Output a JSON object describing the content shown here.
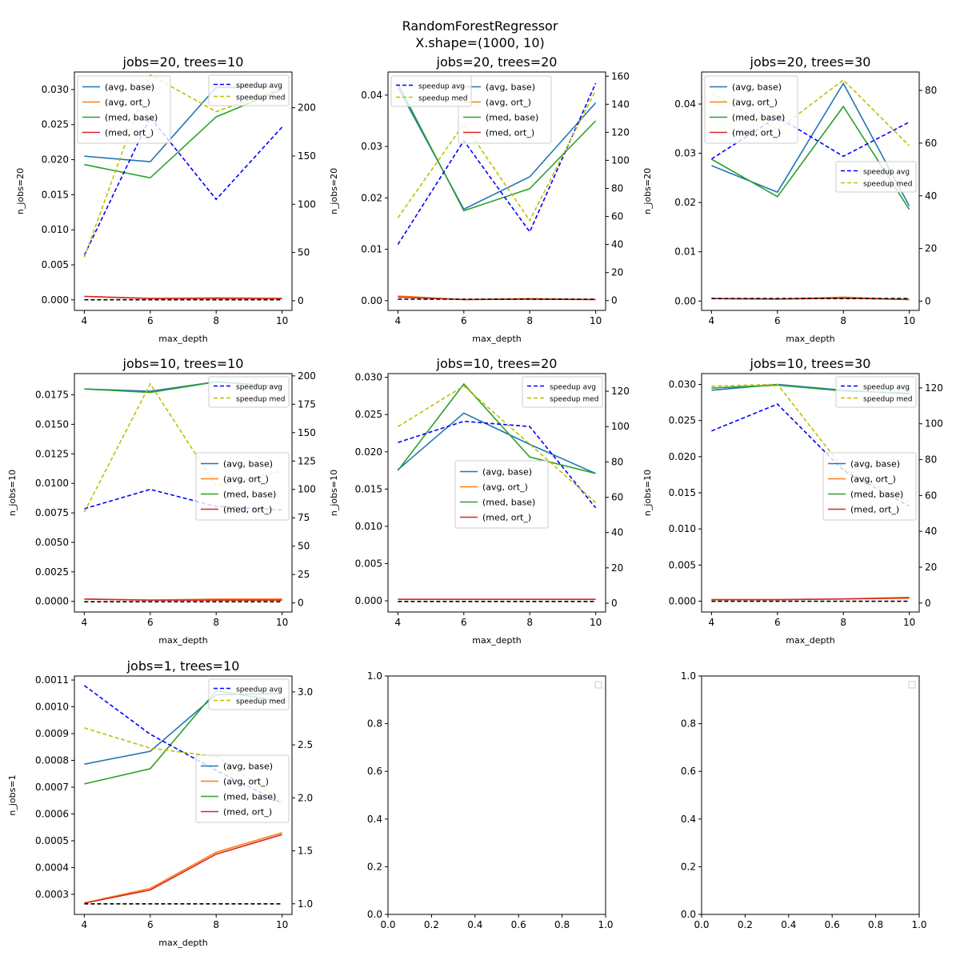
{
  "figure": {
    "title_line1": "RandomForestRegressor",
    "title_line2": "X.shape=(1000, 10)"
  },
  "colors": {
    "avg_base": "#1f77b4",
    "avg_ort": "#ff7f0e",
    "med_base": "#2ca02c",
    "med_ort": "#d62728",
    "speedup_avg": "#0000ff",
    "speedup_med": "#bfbf00",
    "baseline": "#000000"
  },
  "legend_labels": {
    "avg_base": "(avg, base)",
    "avg_ort": "(avg, ort_)",
    "med_base": "(med, base)",
    "med_ort": "(med, ort_)",
    "speedup_avg": "speedup avg",
    "speedup_med": "speedup med"
  },
  "chart_data": [
    {
      "type": "line",
      "title": "jobs=20, trees=10",
      "xlabel": "max_depth",
      "ylabel": "n_jobs=20",
      "x": [
        4,
        6,
        8,
        10
      ],
      "xticks": [
        "4",
        "6",
        "8",
        "10"
      ],
      "ylim": [
        -0.0015,
        0.0325
      ],
      "yticks": [
        "0.000",
        "0.005",
        "0.010",
        "0.015",
        "0.020",
        "0.025",
        "0.030"
      ],
      "ytick_values": [
        0,
        0.005,
        0.01,
        0.015,
        0.02,
        0.025,
        0.03
      ],
      "y2lim": [
        -10,
        237
      ],
      "y2ticks": [
        "0",
        "50",
        "100",
        "150",
        "200"
      ],
      "y2tick_values": [
        0,
        50,
        100,
        150,
        200
      ],
      "series": [
        {
          "name": "(avg, base)",
          "key": "avg_base",
          "values": [
            0.0205,
            0.0197,
            0.0303,
            0.0303
          ]
        },
        {
          "name": "(avg, ort_)",
          "key": "avg_ort",
          "values": [
            0.0005,
            0.0002,
            0.0003,
            0.0002
          ]
        },
        {
          "name": "(med, base)",
          "key": "med_base",
          "values": [
            0.0193,
            0.0174,
            0.0261,
            0.03
          ]
        },
        {
          "name": "(med, ort_)",
          "key": "med_ort",
          "values": [
            0.0005,
            0.0002,
            0.0002,
            0.0002
          ]
        }
      ],
      "series2": [
        {
          "name": "speedup avg",
          "key": "speedup_avg",
          "values": [
            47,
            190,
            105,
            180
          ]
        },
        {
          "name": "speedup med",
          "key": "speedup_med",
          "values": [
            45,
            234,
            196,
            220
          ]
        },
        {
          "name": "baseline",
          "key": "baseline",
          "values": [
            1,
            1,
            1,
            1
          ]
        }
      ],
      "legend1": "upper-left",
      "legend2": "upper-right"
    },
    {
      "type": "line",
      "title": "jobs=20, trees=20",
      "xlabel": "max_depth",
      "ylabel": "n_jobs=20",
      "x": [
        4,
        6,
        8,
        10
      ],
      "xticks": [
        "4",
        "6",
        "8",
        "10"
      ],
      "ylim": [
        -0.0019,
        0.0445
      ],
      "yticks": [
        "0.00",
        "0.01",
        "0.02",
        "0.03",
        "0.04"
      ],
      "ytick_values": [
        0,
        0.01,
        0.02,
        0.03,
        0.04
      ],
      "y2lim": [
        -7,
        163
      ],
      "y2ticks": [
        "0",
        "20",
        "40",
        "60",
        "80",
        "100",
        "120",
        "140",
        "160"
      ],
      "y2tick_values": [
        0,
        20,
        40,
        60,
        80,
        100,
        120,
        140,
        160
      ],
      "series": [
        {
          "name": "(avg, base)",
          "key": "avg_base",
          "values": [
            0.0415,
            0.0178,
            0.0241,
            0.0385
          ]
        },
        {
          "name": "(avg, ort_)",
          "key": "avg_ort",
          "values": [
            0.0009,
            0.0002,
            0.0004,
            0.0002
          ]
        },
        {
          "name": "(med, base)",
          "key": "med_base",
          "values": [
            0.0422,
            0.0175,
            0.0218,
            0.035
          ]
        },
        {
          "name": "(med, ort_)",
          "key": "med_ort",
          "values": [
            0.0007,
            0.0002,
            0.0003,
            0.0002
          ]
        }
      ],
      "series2": [
        {
          "name": "speedup avg",
          "key": "speedup_avg",
          "values": [
            40,
            114,
            49,
            155
          ]
        },
        {
          "name": "speedup med",
          "key": "speedup_med",
          "values": [
            59,
            126,
            57,
            150
          ]
        },
        {
          "name": "baseline",
          "key": "baseline",
          "values": [
            1,
            1,
            1,
            1
          ]
        }
      ],
      "legend1": "upper-center",
      "legend2": "upper-left"
    },
    {
      "type": "line",
      "title": "jobs=20, trees=30",
      "xlabel": "max_depth",
      "ylabel": "n_jobs=20",
      "x": [
        4,
        6,
        8,
        10
      ],
      "xticks": [
        "4",
        "6",
        "8",
        "10"
      ],
      "ylim": [
        -0.0019,
        0.0465
      ],
      "yticks": [
        "0.00",
        "0.01",
        "0.02",
        "0.03",
        "0.04"
      ],
      "ytick_values": [
        0,
        0.01,
        0.02,
        0.03,
        0.04
      ],
      "y2lim": [
        -3.5,
        87
      ],
      "y2ticks": [
        "0",
        "20",
        "40",
        "60",
        "80"
      ],
      "y2tick_values": [
        0,
        20,
        40,
        60,
        80
      ],
      "series": [
        {
          "name": "(avg, base)",
          "key": "avg_base",
          "values": [
            0.0275,
            0.0221,
            0.0442,
            0.0193
          ]
        },
        {
          "name": "(avg, ort_)",
          "key": "avg_ort",
          "values": [
            0.0005,
            0.0004,
            0.0008,
            0.0003
          ]
        },
        {
          "name": "(med, base)",
          "key": "med_base",
          "values": [
            0.0288,
            0.0212,
            0.0395,
            0.0186
          ]
        },
        {
          "name": "(med, ort_)",
          "key": "med_ort",
          "values": [
            0.0005,
            0.0004,
            0.0006,
            0.0003
          ]
        }
      ],
      "series2": [
        {
          "name": "speedup avg",
          "key": "speedup_avg",
          "values": [
            54,
            70,
            55,
            68
          ]
        },
        {
          "name": "speedup med",
          "key": "speedup_med",
          "values": [
            79,
            65,
            84,
            59
          ]
        },
        {
          "name": "baseline",
          "key": "baseline",
          "values": [
            1,
            1,
            1,
            1
          ]
        }
      ],
      "legend1": "upper-left",
      "legend2": "center-right"
    },
    {
      "type": "line",
      "title": "jobs=10, trees=10",
      "xlabel": "max_depth",
      "ylabel": "n_jobs=10",
      "x": [
        4,
        6,
        8,
        10
      ],
      "xticks": [
        "4",
        "6",
        "8",
        "10"
      ],
      "ylim": [
        -0.0009,
        0.0193
      ],
      "yticks": [
        "0.0000",
        "0.0025",
        "0.0050",
        "0.0075",
        "0.0100",
        "0.0125",
        "0.0150",
        "0.0175"
      ],
      "ytick_values": [
        0,
        0.0025,
        0.005,
        0.0075,
        0.01,
        0.0125,
        0.015,
        0.0175
      ],
      "y2lim": [
        -8,
        202
      ],
      "y2ticks": [
        "0",
        "25",
        "50",
        "75",
        "100",
        "125",
        "150",
        "175",
        "200"
      ],
      "y2tick_values": [
        0,
        25,
        50,
        75,
        100,
        125,
        150,
        175,
        200
      ],
      "series": [
        {
          "name": "(avg, base)",
          "key": "avg_base",
          "values": [
            0.018,
            0.0178,
            0.0186,
            0.0182
          ]
        },
        {
          "name": "(avg, ort_)",
          "key": "avg_ort",
          "values": [
            0.0002,
            0.0001,
            0.0002,
            0.0002
          ]
        },
        {
          "name": "(med, base)",
          "key": "med_base",
          "values": [
            0.018,
            0.0177,
            0.0186,
            0.0182
          ]
        },
        {
          "name": "(med, ort_)",
          "key": "med_ort",
          "values": [
            0.0002,
            0.0001,
            0.0001,
            0.0001
          ]
        }
      ],
      "series2": [
        {
          "name": "speedup avg",
          "key": "speedup_avg",
          "values": [
            83,
            100,
            85,
            82
          ]
        },
        {
          "name": "speedup med",
          "key": "speedup_med",
          "values": [
            80,
            193,
            103,
            116
          ]
        },
        {
          "name": "baseline",
          "key": "baseline",
          "values": [
            1,
            1,
            1,
            1
          ]
        }
      ],
      "legend1": "center-right",
      "legend2": "upper-right"
    },
    {
      "type": "line",
      "title": "jobs=10, trees=20",
      "xlabel": "max_depth",
      "ylabel": "n_jobs=10",
      "x": [
        4,
        6,
        8,
        10
      ],
      "xticks": [
        "4",
        "6",
        "8",
        "10"
      ],
      "ylim": [
        -0.0015,
        0.0305
      ],
      "yticks": [
        "0.000",
        "0.005",
        "0.010",
        "0.015",
        "0.020",
        "0.025",
        "0.030"
      ],
      "ytick_values": [
        0,
        0.005,
        0.01,
        0.015,
        0.02,
        0.025,
        0.03
      ],
      "y2lim": [
        -5,
        130
      ],
      "y2ticks": [
        "0",
        "20",
        "40",
        "60",
        "80",
        "100",
        "120"
      ],
      "y2tick_values": [
        0,
        20,
        40,
        60,
        80,
        100,
        120
      ],
      "series": [
        {
          "name": "(avg, base)",
          "key": "avg_base",
          "values": [
            0.0176,
            0.0252,
            0.021,
            0.0171
          ]
        },
        {
          "name": "(avg, ort_)",
          "key": "avg_ort",
          "values": [
            0.0002,
            0.0002,
            0.0002,
            0.0002
          ]
        },
        {
          "name": "(med, base)",
          "key": "med_base",
          "values": [
            0.0175,
            0.0291,
            0.0193,
            0.0171
          ]
        },
        {
          "name": "(med, ort_)",
          "key": "med_ort",
          "values": [
            0.0002,
            0.0002,
            0.0002,
            0.0002
          ]
        }
      ],
      "series2": [
        {
          "name": "speedup avg",
          "key": "speedup_avg",
          "values": [
            91,
            103,
            100,
            54
          ]
        },
        {
          "name": "speedup med",
          "key": "speedup_med",
          "values": [
            100,
            123,
            90,
            57
          ]
        },
        {
          "name": "baseline",
          "key": "baseline",
          "values": [
            1,
            1,
            1,
            1
          ]
        }
      ],
      "legend1": "center",
      "legend2": "upper-right"
    },
    {
      "type": "line",
      "title": "jobs=10, trees=30",
      "xlabel": "max_depth",
      "ylabel": "n_jobs=10",
      "x": [
        4,
        6,
        8,
        10
      ],
      "xticks": [
        "4",
        "6",
        "8",
        "10"
      ],
      "ylim": [
        -0.0015,
        0.0315
      ],
      "yticks": [
        "0.000",
        "0.005",
        "0.010",
        "0.015",
        "0.020",
        "0.025",
        "0.030"
      ],
      "ytick_values": [
        0,
        0.005,
        0.01,
        0.015,
        0.02,
        0.025,
        0.03
      ],
      "y2lim": [
        -5,
        128
      ],
      "y2ticks": [
        "0",
        "20",
        "40",
        "60",
        "80",
        "100",
        "120"
      ],
      "y2tick_values": [
        0,
        20,
        40,
        60,
        80,
        100,
        120
      ],
      "series": [
        {
          "name": "(avg, base)",
          "key": "avg_base",
          "values": [
            0.0292,
            0.03,
            0.0292,
            0.0287
          ]
        },
        {
          "name": "(avg, ort_)",
          "key": "avg_ort",
          "values": [
            0.0002,
            0.0002,
            0.0003,
            0.0004
          ]
        },
        {
          "name": "(med, base)",
          "key": "med_base",
          "values": [
            0.0295,
            0.0299,
            0.0291,
            0.0288
          ]
        },
        {
          "name": "(med, ort_)",
          "key": "med_ort",
          "values": [
            0.0002,
            0.0002,
            0.0003,
            0.0005
          ]
        }
      ],
      "series2": [
        {
          "name": "speedup avg",
          "key": "speedup_avg",
          "values": [
            96,
            111,
            74,
            54
          ]
        },
        {
          "name": "speedup med",
          "key": "speedup_med",
          "values": [
            121,
            122,
            75,
            56
          ]
        },
        {
          "name": "baseline",
          "key": "baseline",
          "values": [
            1,
            1,
            1,
            1
          ]
        }
      ],
      "legend1": "center-right",
      "legend2": "upper-right"
    },
    {
      "type": "line",
      "title": "jobs=1, trees=10",
      "xlabel": "max_depth",
      "ylabel": "n_jobs=1",
      "x": [
        4,
        6,
        8,
        10
      ],
      "xticks": [
        "4",
        "6",
        "8",
        "10"
      ],
      "ylim": [
        0.000225,
        0.001115
      ],
      "yticks": [
        "0.0003",
        "0.0004",
        "0.0005",
        "0.0006",
        "0.0007",
        "0.0008",
        "0.0009",
        "0.0010",
        "0.0011"
      ],
      "ytick_values": [
        0.0003,
        0.0004,
        0.0005,
        0.0006,
        0.0007,
        0.0008,
        0.0009,
        0.001,
        0.0011
      ],
      "y2lim": [
        0.9,
        3.15
      ],
      "y2ticks": [
        "1.0",
        "1.5",
        "2.0",
        "2.5",
        "3.0"
      ],
      "y2tick_values": [
        1.0,
        1.5,
        2.0,
        2.5,
        3.0
      ],
      "series": [
        {
          "name": "(avg, base)",
          "key": "avg_base",
          "values": [
            0.000786,
            0.000834,
            0.001045,
            0.00105
          ]
        },
        {
          "name": "(avg, ort_)",
          "key": "avg_ort",
          "values": [
            0.000268,
            0.000322,
            0.000457,
            0.00053
          ]
        },
        {
          "name": "(med, base)",
          "key": "med_base",
          "values": [
            0.000712,
            0.000769,
            0.00106,
            0.00102
          ]
        },
        {
          "name": "(med, ort_)",
          "key": "med_ort",
          "values": [
            0.000267,
            0.000316,
            0.00045,
            0.000523
          ]
        }
      ],
      "series2": [
        {
          "name": "speedup avg",
          "key": "speedup_avg",
          "values": [
            3.06,
            2.6,
            2.26,
            1.95
          ]
        },
        {
          "name": "speedup med",
          "key": "speedup_med",
          "values": [
            2.66,
            2.47,
            2.39,
            1.97
          ]
        },
        {
          "name": "baseline",
          "key": "baseline",
          "values": [
            1,
            1,
            1,
            1
          ]
        }
      ],
      "legend1": "center-right",
      "legend2": "upper-right"
    },
    {
      "type": "line",
      "empty": true,
      "xlim": [
        0,
        1
      ],
      "ylim": [
        0,
        1
      ],
      "xticks": [
        "0.0",
        "0.2",
        "0.4",
        "0.6",
        "0.8",
        "1.0"
      ],
      "xtick_values": [
        0,
        0.2,
        0.4,
        0.6,
        0.8,
        1.0
      ],
      "yticks": [
        "0.0",
        "0.2",
        "0.4",
        "0.6",
        "0.8",
        "1.0"
      ],
      "ytick_values": [
        0,
        0.2,
        0.4,
        0.6,
        0.8,
        1.0
      ]
    },
    {
      "type": "line",
      "empty": true,
      "xlim": [
        0,
        1
      ],
      "ylim": [
        0,
        1
      ],
      "xticks": [
        "0.0",
        "0.2",
        "0.4",
        "0.6",
        "0.8",
        "1.0"
      ],
      "xtick_values": [
        0,
        0.2,
        0.4,
        0.6,
        0.8,
        1.0
      ],
      "yticks": [
        "0.0",
        "0.2",
        "0.4",
        "0.6",
        "0.8",
        "1.0"
      ],
      "ytick_values": [
        0,
        0.2,
        0.4,
        0.6,
        0.8,
        1.0
      ]
    }
  ]
}
